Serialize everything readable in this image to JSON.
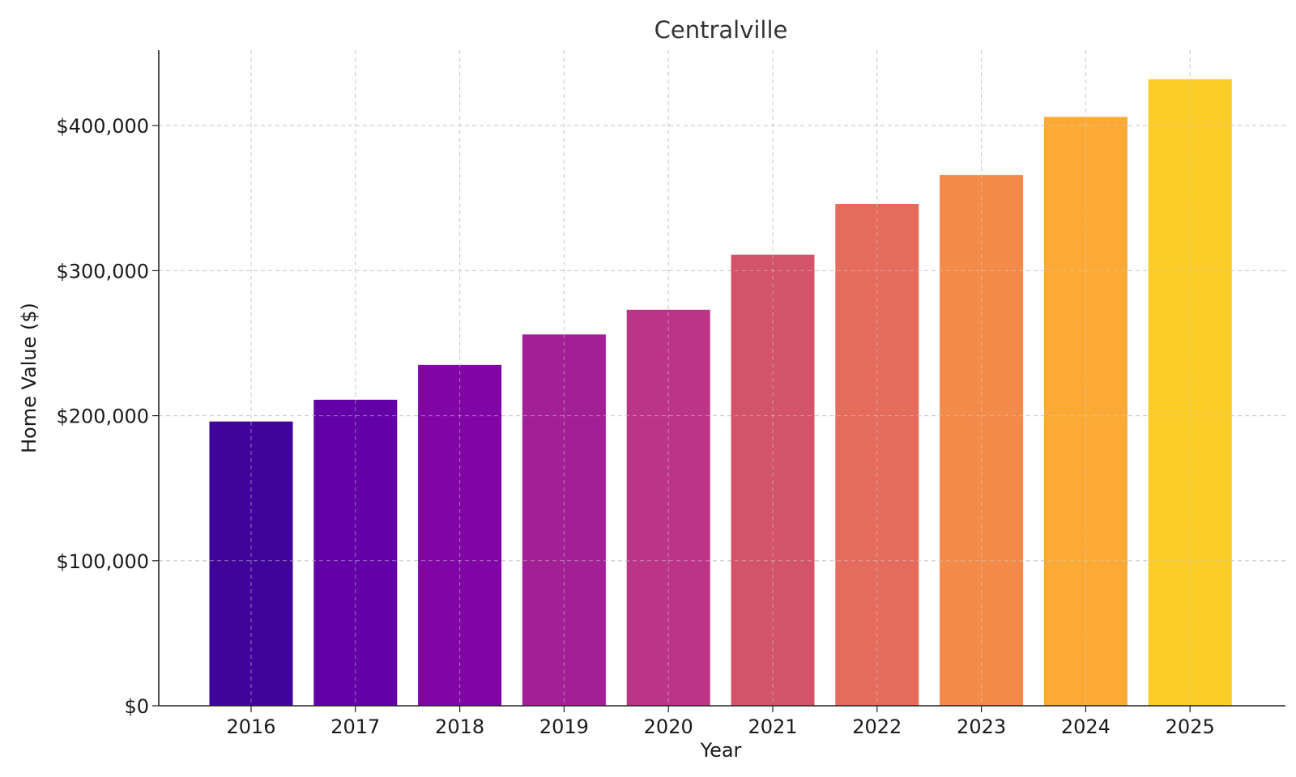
{
  "chart_data": {
    "type": "bar",
    "title": "Centralville",
    "xlabel": "Year",
    "ylabel": "Home Value ($)",
    "categories": [
      "2016",
      "2017",
      "2018",
      "2019",
      "2020",
      "2021",
      "2022",
      "2023",
      "2024",
      "2025"
    ],
    "values": [
      196000,
      211000,
      235000,
      256000,
      273000,
      311000,
      346000,
      366000,
      406000,
      432000
    ],
    "colors": [
      "#40049a",
      "#6300a7",
      "#8104a7",
      "#a21f95",
      "#bb3488",
      "#d35469",
      "#e56b5d",
      "#f48a49",
      "#fbab35",
      "#fbcc27"
    ],
    "yticks": [
      0,
      100000,
      200000,
      300000,
      400000
    ],
    "ytick_labels": [
      "$0",
      "$100,000",
      "$200,000",
      "$300,000",
      "$400,000"
    ],
    "ylim": [
      0,
      452000
    ],
    "grid": true
  }
}
